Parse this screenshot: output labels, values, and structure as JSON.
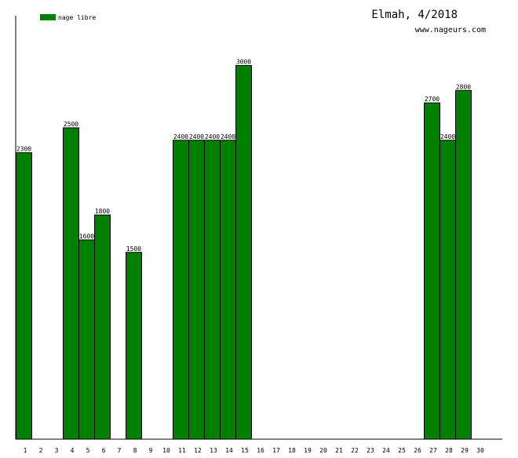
{
  "chart_data": {
    "type": "bar",
    "title": "Elmah, 4/2018",
    "subtitle": "www.nageurs.com",
    "legend": {
      "position": "top-left",
      "entries": [
        {
          "name": "nage libre",
          "color": "#008000"
        }
      ]
    },
    "categories": [
      "1",
      "2",
      "3",
      "4",
      "5",
      "6",
      "7",
      "8",
      "9",
      "10",
      "11",
      "12",
      "13",
      "14",
      "15",
      "16",
      "17",
      "18",
      "19",
      "20",
      "21",
      "22",
      "23",
      "24",
      "25",
      "26",
      "27",
      "28",
      "29",
      "30"
    ],
    "series": [
      {
        "name": "nage libre",
        "color": "#008000",
        "values": [
          2300,
          null,
          null,
          2500,
          1600,
          1800,
          null,
          1500,
          null,
          null,
          2400,
          2400,
          2400,
          2400,
          3000,
          null,
          null,
          null,
          null,
          null,
          null,
          null,
          null,
          null,
          null,
          null,
          2700,
          2400,
          2800,
          null
        ]
      }
    ],
    "ylim": [
      0,
      3400
    ],
    "grid": false,
    "xlabel": "",
    "ylabel": ""
  }
}
